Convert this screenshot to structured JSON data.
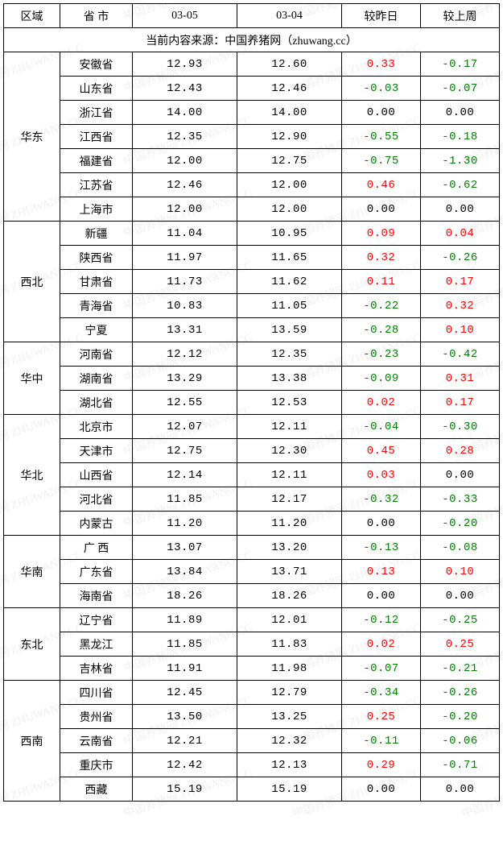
{
  "watermark_text": "中国养猪网 ZHUWANG.CC",
  "watermark_color": "#f0f0f0",
  "colors": {
    "up": "#ff0000",
    "down": "#008000",
    "neutral": "#000000",
    "border": "#000000"
  },
  "columns": {
    "region": "区域",
    "province": "省 市",
    "date1": "03-05",
    "date2": "03-04",
    "delta_day": "较昨日",
    "delta_week": "较上周"
  },
  "source_line": "当前内容来源：中国养猪网（zhuwang.cc）",
  "regions": [
    {
      "name": "华东",
      "rows": [
        {
          "prov": "安徽省",
          "d1": "12.93",
          "d2": "12.60",
          "dy": "0.33",
          "dw": "-0.17"
        },
        {
          "prov": "山东省",
          "d1": "12.43",
          "d2": "12.46",
          "dy": "-0.03",
          "dw": "-0.07"
        },
        {
          "prov": "浙江省",
          "d1": "14.00",
          "d2": "14.00",
          "dy": "0.00",
          "dw": "0.00"
        },
        {
          "prov": "江西省",
          "d1": "12.35",
          "d2": "12.90",
          "dy": "-0.55",
          "dw": "-0.18"
        },
        {
          "prov": "福建省",
          "d1": "12.00",
          "d2": "12.75",
          "dy": "-0.75",
          "dw": "-1.30"
        },
        {
          "prov": "江苏省",
          "d1": "12.46",
          "d2": "12.00",
          "dy": "0.46",
          "dw": "-0.62"
        },
        {
          "prov": "上海市",
          "d1": "12.00",
          "d2": "12.00",
          "dy": "0.00",
          "dw": "0.00"
        }
      ]
    },
    {
      "name": "西北",
      "rows": [
        {
          "prov": "新疆",
          "d1": "11.04",
          "d2": "10.95",
          "dy": "0.09",
          "dw": "0.04"
        },
        {
          "prov": "陕西省",
          "d1": "11.97",
          "d2": "11.65",
          "dy": "0.32",
          "dw": "-0.26"
        },
        {
          "prov": "甘肃省",
          "d1": "11.73",
          "d2": "11.62",
          "dy": "0.11",
          "dw": "0.17"
        },
        {
          "prov": "青海省",
          "d1": "10.83",
          "d2": "11.05",
          "dy": "-0.22",
          "dw": "0.32"
        },
        {
          "prov": "宁夏",
          "d1": "13.31",
          "d2": "13.59",
          "dy": "-0.28",
          "dw": "0.10"
        }
      ]
    },
    {
      "name": "华中",
      "rows": [
        {
          "prov": "河南省",
          "d1": "12.12",
          "d2": "12.35",
          "dy": "-0.23",
          "dw": "-0.42"
        },
        {
          "prov": "湖南省",
          "d1": "13.29",
          "d2": "13.38",
          "dy": "-0.09",
          "dw": "0.31"
        },
        {
          "prov": "湖北省",
          "d1": "12.55",
          "d2": "12.53",
          "dy": "0.02",
          "dw": "0.17"
        }
      ]
    },
    {
      "name": "华北",
      "rows": [
        {
          "prov": "北京市",
          "d1": "12.07",
          "d2": "12.11",
          "dy": "-0.04",
          "dw": "-0.30"
        },
        {
          "prov": "天津市",
          "d1": "12.75",
          "d2": "12.30",
          "dy": "0.45",
          "dw": "0.28"
        },
        {
          "prov": "山西省",
          "d1": "12.14",
          "d2": "12.11",
          "dy": "0.03",
          "dw": "0.00"
        },
        {
          "prov": "河北省",
          "d1": "11.85",
          "d2": "12.17",
          "dy": "-0.32",
          "dw": "-0.33"
        },
        {
          "prov": "内蒙古",
          "d1": "11.20",
          "d2": "11.20",
          "dy": "0.00",
          "dw": "-0.20"
        }
      ]
    },
    {
      "name": "华南",
      "rows": [
        {
          "prov": "广 西",
          "d1": "13.07",
          "d2": "13.20",
          "dy": "-0.13",
          "dw": "-0.08"
        },
        {
          "prov": "广东省",
          "d1": "13.84",
          "d2": "13.71",
          "dy": "0.13",
          "dw": "0.10"
        },
        {
          "prov": "海南省",
          "d1": "18.26",
          "d2": "18.26",
          "dy": "0.00",
          "dw": "0.00"
        }
      ]
    },
    {
      "name": "东北",
      "rows": [
        {
          "prov": "辽宁省",
          "d1": "11.89",
          "d2": "12.01",
          "dy": "-0.12",
          "dw": "-0.25"
        },
        {
          "prov": "黑龙江",
          "d1": "11.85",
          "d2": "11.83",
          "dy": "0.02",
          "dw": "0.25"
        },
        {
          "prov": "吉林省",
          "d1": "11.91",
          "d2": "11.98",
          "dy": "-0.07",
          "dw": "-0.21"
        }
      ]
    },
    {
      "name": "西南",
      "rows": [
        {
          "prov": "四川省",
          "d1": "12.45",
          "d2": "12.79",
          "dy": "-0.34",
          "dw": "-0.26"
        },
        {
          "prov": "贵州省",
          "d1": "13.50",
          "d2": "13.25",
          "dy": "0.25",
          "dw": "-0.20"
        },
        {
          "prov": "云南省",
          "d1": "12.21",
          "d2": "12.32",
          "dy": "-0.11",
          "dw": "-0.06"
        },
        {
          "prov": "重庆市",
          "d1": "12.42",
          "d2": "12.13",
          "dy": "0.29",
          "dw": "-0.71"
        },
        {
          "prov": "西藏",
          "d1": "15.19",
          "d2": "15.19",
          "dy": "0.00",
          "dw": "0.00"
        }
      ]
    }
  ]
}
